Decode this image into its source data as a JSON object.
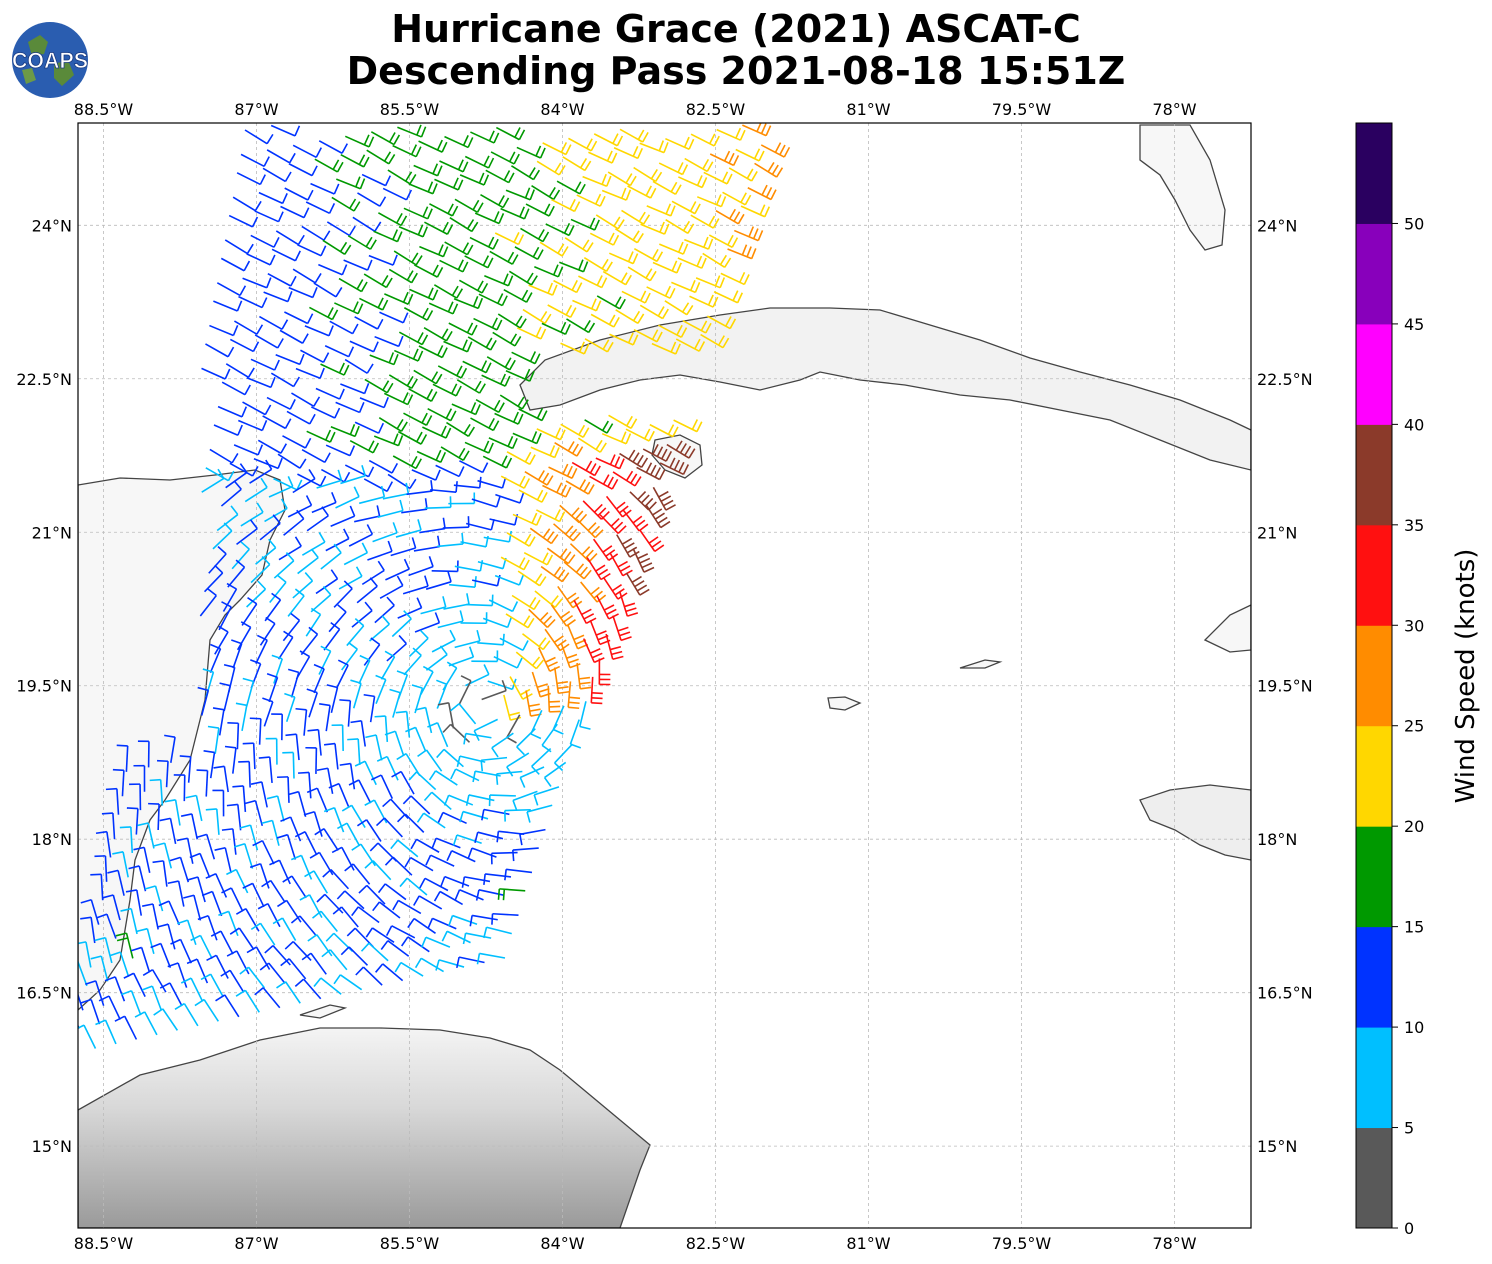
{
  "title": {
    "line1": "Hurricane Grace (2021) ASCAT-C",
    "line2": "Descending Pass 2021-08-18 15:51Z"
  },
  "logo": {
    "text": "COAPS",
    "icon": "globe-logo-icon"
  },
  "map": {
    "lon_range": [
      -88.75,
      -77.25
    ],
    "lat_range": [
      14.2,
      25.0
    ],
    "lon_ticks": [
      {
        "value": -88.5,
        "label": "88.5°W"
      },
      {
        "value": -87.0,
        "label": "87°W"
      },
      {
        "value": -85.5,
        "label": "85.5°W"
      },
      {
        "value": -84.0,
        "label": "84°W"
      },
      {
        "value": -82.5,
        "label": "82.5°W"
      },
      {
        "value": -81.0,
        "label": "81°W"
      },
      {
        "value": -79.5,
        "label": "79.5°W"
      },
      {
        "value": -78.0,
        "label": "78°W"
      }
    ],
    "lat_ticks": [
      {
        "value": 15.0,
        "label": "15°N"
      },
      {
        "value": 16.5,
        "label": "16.5°N"
      },
      {
        "value": 18.0,
        "label": "18°N"
      },
      {
        "value": 19.5,
        "label": "19.5°N"
      },
      {
        "value": 21.0,
        "label": "21°N"
      },
      {
        "value": 22.5,
        "label": "22.5°N"
      },
      {
        "value": 24.0,
        "label": "24°N"
      }
    ],
    "gridlines": true,
    "colors": {
      "land_outline": "#444444",
      "grid": "#bbbbbb",
      "ocean": "#ffffff"
    }
  },
  "colorbar": {
    "label": "Wind Speed (knots)",
    "ticks": [
      "0",
      "5",
      "10",
      "15",
      "20",
      "25",
      "30",
      "35",
      "40",
      "45",
      "50"
    ],
    "colors": [
      "#595959",
      "#00bfff",
      "#0033ff",
      "#009900",
      "#ffd700",
      "#ff8c00",
      "#ff1010",
      "#8b3a2a",
      "#ff00ff",
      "#8800bb",
      "#2a0060"
    ]
  }
}
